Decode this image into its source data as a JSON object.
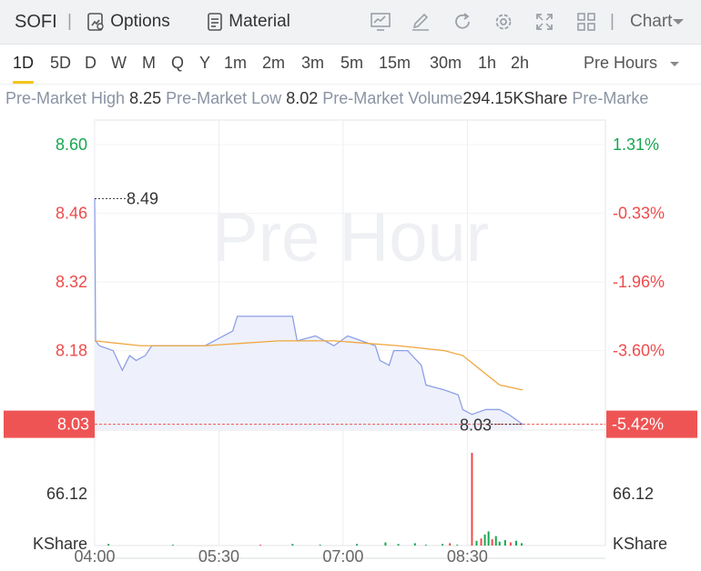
{
  "toolbar": {
    "symbol": "SOFI",
    "separator": "|",
    "options_label": "Options",
    "material_label": "Material",
    "chart_label": "Chart",
    "icons": [
      "options-icon",
      "material-icon",
      "indicator-icon",
      "draw-icon",
      "refresh-icon",
      "settings-icon",
      "fullscreen-icon",
      "layout-icon",
      "chevron-down-icon"
    ]
  },
  "periods": [
    "1D",
    "5D",
    "D",
    "W",
    "M",
    "Q",
    "Y",
    "1m",
    "2m",
    "3m",
    "5m",
    "15m",
    "30m",
    "1h",
    "2h"
  ],
  "active_period": "1D",
  "session_select": "Pre Hours",
  "stats": {
    "high_label": "Pre-Market High",
    "high_value": "8.25",
    "low_label": "Pre-Market Low",
    "low_value": "8.02",
    "volume_label": "Pre-Market Volume",
    "volume_value": "294.15KShare",
    "next_label": "Pre-Marke"
  },
  "colors": {
    "up": "#17a651",
    "down": "#ee4b4b",
    "line": "#8ea0e6",
    "avg": "#f0a640",
    "current": "#ef5454"
  },
  "chart_data": {
    "type": "line",
    "watermark": "Pre Hour",
    "prev_close": 8.49,
    "x_ticks": [
      "04:00",
      "05:30",
      "07:00",
      "08:30"
    ],
    "y_ticks": [
      "8.60",
      "8.46",
      "8.32",
      "8.18"
    ],
    "pct_ticks": [
      "1.31%",
      "-0.33%",
      "-1.96%",
      "-3.60%"
    ],
    "current_price": "8.03",
    "current_pct": "-5.42%",
    "ref_label": "8.49",
    "last_label": "8.03",
    "volume_tick_left": "66.12",
    "volume_tick_right": "66.12",
    "volume_unit_left": "KShare",
    "volume_unit_right": "KShare",
    "price_series": [
      [
        0,
        8.49
      ],
      [
        1,
        8.2
      ],
      [
        5,
        8.19
      ],
      [
        20,
        8.18
      ],
      [
        25,
        8.16
      ],
      [
        30,
        8.14
      ],
      [
        38,
        8.17
      ],
      [
        45,
        8.16
      ],
      [
        55,
        8.17
      ],
      [
        62,
        8.19
      ],
      [
        100,
        8.19
      ],
      [
        120,
        8.19
      ],
      [
        150,
        8.22
      ],
      [
        155,
        8.25
      ],
      [
        215,
        8.25
      ],
      [
        220,
        8.2
      ],
      [
        240,
        8.21
      ],
      [
        260,
        8.19
      ],
      [
        275,
        8.21
      ],
      [
        305,
        8.19
      ],
      [
        310,
        8.16
      ],
      [
        320,
        8.15
      ],
      [
        325,
        8.18
      ],
      [
        340,
        8.18
      ],
      [
        355,
        8.15
      ],
      [
        360,
        8.11
      ],
      [
        380,
        8.1
      ],
      [
        395,
        8.09
      ],
      [
        400,
        8.06
      ],
      [
        410,
        8.05
      ],
      [
        425,
        8.06
      ],
      [
        440,
        8.06
      ],
      [
        450,
        8.05
      ],
      [
        465,
        8.03
      ]
    ],
    "avg_series": [
      [
        0,
        8.2
      ],
      [
        50,
        8.19
      ],
      [
        120,
        8.19
      ],
      [
        200,
        8.2
      ],
      [
        260,
        8.2
      ],
      [
        330,
        8.19
      ],
      [
        380,
        8.18
      ],
      [
        400,
        8.17
      ],
      [
        420,
        8.14
      ],
      [
        440,
        8.11
      ],
      [
        465,
        8.1
      ]
    ],
    "volume_bars": [
      [
        15,
        2,
        "up"
      ],
      [
        85,
        1,
        "up"
      ],
      [
        180,
        1,
        "down"
      ],
      [
        215,
        2,
        "up"
      ],
      [
        245,
        1,
        "up"
      ],
      [
        285,
        2,
        "up"
      ],
      [
        316,
        4,
        "up"
      ],
      [
        330,
        2,
        "up"
      ],
      [
        348,
        3,
        "up"
      ],
      [
        360,
        1,
        "up"
      ],
      [
        378,
        2,
        "up"
      ],
      [
        386,
        3,
        "down"
      ],
      [
        394,
        1,
        "up"
      ],
      [
        410,
        118,
        "down"
      ],
      [
        415,
        6,
        "up"
      ],
      [
        420,
        9,
        "down"
      ],
      [
        424,
        14,
        "up"
      ],
      [
        428,
        18,
        "up"
      ],
      [
        432,
        8,
        "down"
      ],
      [
        436,
        12,
        "up"
      ],
      [
        440,
        5,
        "up"
      ],
      [
        446,
        7,
        "up"
      ],
      [
        452,
        4,
        "down"
      ],
      [
        458,
        6,
        "up"
      ],
      [
        464,
        3,
        "up"
      ]
    ],
    "ylim": [
      8.02,
      8.65
    ],
    "volume_max": 140
  }
}
